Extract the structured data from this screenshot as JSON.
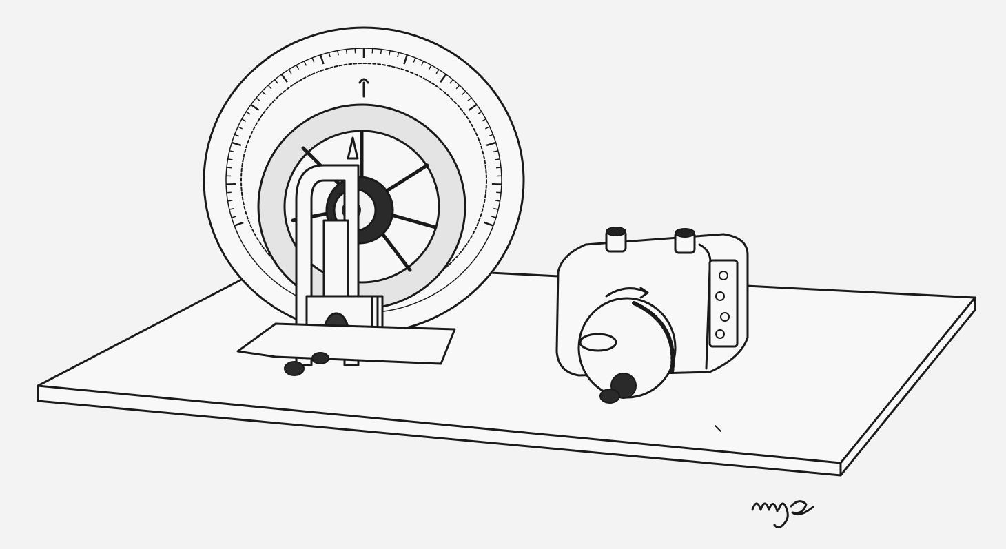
{
  "illustration": {
    "subject": "",
    "signature": "mjs"
  },
  "colors": {
    "paper": "#f3f3f3",
    "ink": "#1a1a1a"
  },
  "icons": {
    "signature": "handwritten-signature-icon"
  }
}
